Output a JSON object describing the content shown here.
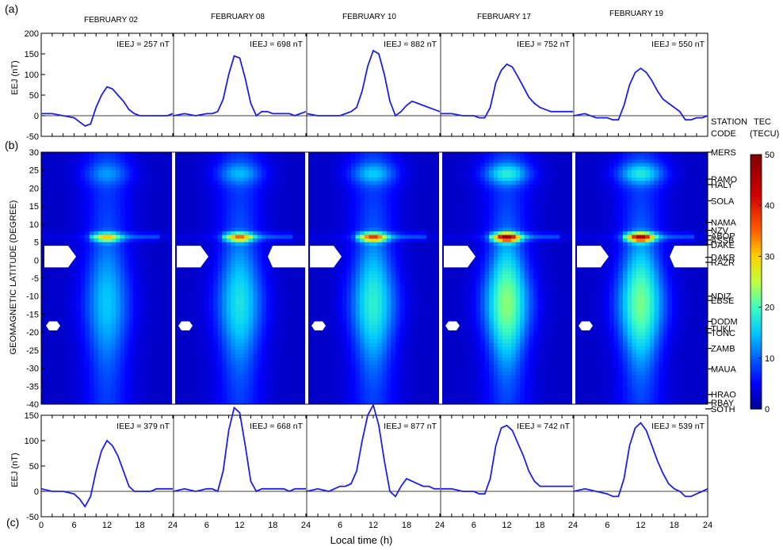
{
  "panel_labels": [
    "(a)",
    "(b)",
    "(c)"
  ],
  "dates": [
    "FEBRUARY 02",
    "FEBRUARY 08",
    "FEBRUARY 10",
    "FEBRUARY 17",
    "FEBRUARY 19"
  ],
  "colorbar": {
    "title": "TEC",
    "unit": "(TECU)",
    "ticks": [
      "50",
      "40",
      "30",
      "20",
      "10",
      "0"
    ],
    "colors": [
      "#00008f",
      "#0000ff",
      "#0060ff",
      "#00c8ff",
      "#40ffbf",
      "#c0ff40",
      "#ffd000",
      "#ff5000",
      "#d00000",
      "#800000"
    ]
  },
  "station_header": [
    "STATION",
    "CODE"
  ],
  "stations": [
    {
      "code": "MERS",
      "lat": 30
    },
    {
      "code": "RAMO",
      "lat": 22.5
    },
    {
      "code": "HALY",
      "lat": 21
    },
    {
      "code": "SOLA",
      "lat": 16.5
    },
    {
      "code": "NAMA",
      "lat": 10.5
    },
    {
      "code": "NZV",
      "lat": 8.3
    },
    {
      "code": "ABOP",
      "lat": 6.8
    },
    {
      "code": "ASSB",
      "lat": 5.6
    },
    {
      "code": "DAKE",
      "lat": 4.3
    },
    {
      "code": "DAKR",
      "lat": 0.8
    },
    {
      "code": "RAZR",
      "lat": -0.6
    },
    {
      "code": "NDIZ",
      "lat": -10
    },
    {
      "code": "EBSE",
      "lat": -11.2
    },
    {
      "code": "DODM",
      "lat": -17
    },
    {
      "code": "TUKI",
      "lat": -19
    },
    {
      "code": "TONC",
      "lat": -20.2
    },
    {
      "code": "ZAMB",
      "lat": -24.5
    },
    {
      "code": "MAUA",
      "lat": -30.2
    },
    {
      "code": "HRAO",
      "lat": -37.3
    },
    {
      "code": "RBAY",
      "lat": -39.6
    },
    {
      "code": "SOTH",
      "lat": -41.3
    }
  ],
  "xlabel": "Local time (h)",
  "chart_data": [
    {
      "type": "line",
      "panel": "(a)",
      "ylabel": "EEJ (nT)",
      "ylim": [
        -50,
        200
      ],
      "yticks": [
        200,
        150,
        100,
        50,
        0,
        -50
      ],
      "xticks": [
        0,
        6,
        12,
        18,
        24
      ],
      "xlim": [
        0,
        24
      ],
      "series": [
        {
          "annotation": "IEEJ = 257 nT",
          "x": [
            0,
            2,
            4,
            6,
            7,
            8,
            9,
            10,
            11,
            12,
            13,
            14,
            15,
            16,
            17,
            18,
            19,
            20,
            21,
            22,
            23,
            24
          ],
          "y": [
            5,
            5,
            0,
            -5,
            -15,
            -25,
            -20,
            20,
            50,
            70,
            65,
            50,
            35,
            15,
            5,
            0,
            0,
            0,
            0,
            0,
            0,
            5
          ]
        },
        {
          "annotation": "IEEJ = 698 nT",
          "x": [
            0,
            2,
            4,
            6,
            7,
            8,
            9,
            10,
            11,
            12,
            13,
            14,
            15,
            16,
            17,
            18,
            19,
            20,
            21,
            22,
            23,
            24
          ],
          "y": [
            0,
            5,
            0,
            5,
            5,
            10,
            40,
            100,
            145,
            140,
            90,
            30,
            0,
            10,
            10,
            5,
            5,
            5,
            5,
            0,
            5,
            10
          ]
        },
        {
          "annotation": "IEEJ = 882 nT",
          "x": [
            0,
            2,
            4,
            6,
            7,
            8,
            9,
            10,
            11,
            12,
            13,
            14,
            15,
            16,
            17,
            18,
            19,
            20,
            21,
            22,
            23,
            24
          ],
          "y": [
            5,
            0,
            0,
            0,
            5,
            10,
            20,
            60,
            120,
            158,
            150,
            100,
            35,
            0,
            10,
            25,
            35,
            30,
            25,
            20,
            15,
            10
          ]
        },
        {
          "annotation": "IEEJ = 752 nT",
          "x": [
            0,
            2,
            4,
            6,
            7,
            8,
            9,
            10,
            11,
            12,
            13,
            14,
            15,
            16,
            17,
            18,
            19,
            20,
            21,
            22,
            23,
            24
          ],
          "y": [
            5,
            5,
            0,
            0,
            -5,
            -5,
            20,
            80,
            110,
            125,
            118,
            95,
            70,
            45,
            30,
            20,
            15,
            10,
            10,
            10,
            10,
            10
          ]
        },
        {
          "annotation": "IEEJ = 550 nT",
          "x": [
            0,
            2,
            4,
            6,
            7,
            8,
            9,
            10,
            11,
            12,
            13,
            14,
            15,
            16,
            17,
            18,
            19,
            20,
            21,
            22,
            23,
            24
          ],
          "y": [
            0,
            5,
            -5,
            -5,
            -10,
            -10,
            25,
            75,
            105,
            115,
            105,
            85,
            60,
            40,
            30,
            20,
            10,
            -10,
            -10,
            -5,
            -5,
            0
          ]
        }
      ]
    },
    {
      "type": "heatmap",
      "panel": "(b)",
      "ylabel": "GEOMAGNETIC LATITUDE (DEGREE)",
      "ylim": [
        -40,
        30
      ],
      "yticks": [
        30,
        25,
        20,
        15,
        10,
        5,
        0,
        -5,
        -10,
        -15,
        -20,
        -25,
        -30,
        -35,
        -40
      ],
      "clim": [
        0,
        50
      ],
      "peak_tec_at_6deg_12LT": [
        22,
        28,
        32,
        44,
        42
      ],
      "note": "TEC maps for the same five days as panel (a); equatorial anomaly crest near +6 deg around 12 LT"
    },
    {
      "type": "line",
      "panel": "(c)",
      "ylabel": "EEJ (nT)",
      "ylim": [
        -50,
        150
      ],
      "yticks": [
        150,
        100,
        50,
        0,
        -50
      ],
      "xticks": [
        0,
        6,
        12,
        18,
        24
      ],
      "xlim": [
        0,
        24
      ],
      "series": [
        {
          "annotation": "IEEJ = 379 nT",
          "x": [
            0,
            2,
            4,
            6,
            7,
            8,
            9,
            10,
            11,
            12,
            13,
            14,
            15,
            16,
            17,
            18,
            19,
            20,
            21,
            22,
            23,
            24
          ],
          "y": [
            5,
            0,
            0,
            -5,
            -15,
            -30,
            -10,
            40,
            80,
            100,
            90,
            70,
            40,
            10,
            0,
            0,
            0,
            0,
            5,
            5,
            5,
            5
          ]
        },
        {
          "annotation": "IEEJ = 668 nT",
          "x": [
            0,
            2,
            4,
            6,
            7,
            8,
            9,
            10,
            11,
            12,
            13,
            14,
            15,
            16,
            17,
            18,
            19,
            20,
            21,
            22,
            23,
            24
          ],
          "y": [
            0,
            5,
            0,
            5,
            5,
            0,
            40,
            120,
            165,
            155,
            90,
            20,
            0,
            5,
            5,
            5,
            5,
            5,
            0,
            5,
            5,
            5
          ]
        },
        {
          "annotation": "IEEJ = 877 nT",
          "x": [
            0,
            2,
            4,
            6,
            7,
            8,
            9,
            10,
            11,
            12,
            13,
            14,
            15,
            16,
            17,
            18,
            19,
            20,
            21,
            22,
            23,
            24
          ],
          "y": [
            0,
            5,
            0,
            10,
            10,
            15,
            40,
            100,
            150,
            170,
            130,
            60,
            0,
            -10,
            10,
            25,
            20,
            15,
            10,
            10,
            5,
            5
          ]
        },
        {
          "annotation": "IEEJ = 742 nT",
          "x": [
            0,
            2,
            4,
            6,
            7,
            8,
            9,
            10,
            11,
            12,
            13,
            14,
            15,
            16,
            17,
            18,
            19,
            20,
            21,
            22,
            23,
            24
          ],
          "y": [
            5,
            5,
            0,
            0,
            -5,
            -5,
            25,
            90,
            125,
            130,
            120,
            95,
            70,
            40,
            20,
            10,
            10,
            10,
            10,
            10,
            10,
            10
          ]
        },
        {
          "annotation": "IEEJ = 539 nT",
          "x": [
            0,
            2,
            4,
            6,
            7,
            8,
            9,
            10,
            11,
            12,
            13,
            14,
            15,
            16,
            17,
            18,
            19,
            20,
            21,
            22,
            23,
            24
          ],
          "y": [
            0,
            5,
            0,
            -5,
            -10,
            -10,
            25,
            90,
            125,
            135,
            120,
            90,
            60,
            35,
            15,
            5,
            0,
            -10,
            -10,
            -5,
            0,
            5
          ]
        }
      ]
    }
  ]
}
